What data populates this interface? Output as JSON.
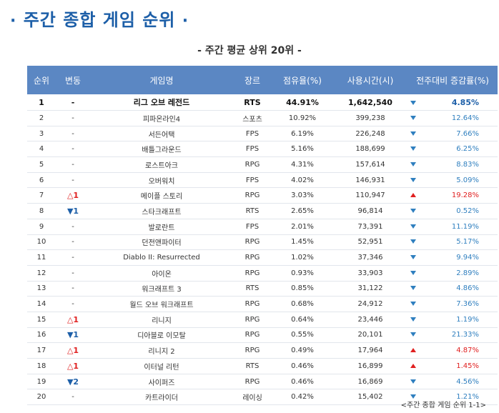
{
  "title": {
    "bullet_left": "·",
    "text": "주간 종합 게임 순위",
    "bullet_right": "·"
  },
  "subtitle": "- 주간 평균 상위 20위 -",
  "table": {
    "headers": [
      "순위",
      "변동",
      "게임명",
      "장르",
      "점유율(%)",
      "사용시간(시)",
      "전주대비 증감률(%)"
    ],
    "rows": [
      {
        "rank": "1",
        "move": "-",
        "move_dir": "none",
        "name": "리그 오브 레전드",
        "genre": "RTS",
        "share": "44.91%",
        "hours": "1,642,540",
        "trend": "down",
        "change": "4.85%"
      },
      {
        "rank": "2",
        "move": "-",
        "move_dir": "none",
        "name": "피파온라인4",
        "genre": "스포츠",
        "share": "10.92%",
        "hours": "399,238",
        "trend": "down",
        "change": "12.64%"
      },
      {
        "rank": "3",
        "move": "-",
        "move_dir": "none",
        "name": "서든어택",
        "genre": "FPS",
        "share": "6.19%",
        "hours": "226,248",
        "trend": "down",
        "change": "7.66%"
      },
      {
        "rank": "4",
        "move": "-",
        "move_dir": "none",
        "name": "배틀그라운드",
        "genre": "FPS",
        "share": "5.16%",
        "hours": "188,699",
        "trend": "down",
        "change": "6.25%"
      },
      {
        "rank": "5",
        "move": "-",
        "move_dir": "none",
        "name": "로스트아크",
        "genre": "RPG",
        "share": "4.31%",
        "hours": "157,614",
        "trend": "down",
        "change": "8.83%"
      },
      {
        "rank": "6",
        "move": "-",
        "move_dir": "none",
        "name": "오버워치",
        "genre": "FPS",
        "share": "4.02%",
        "hours": "146,931",
        "trend": "down",
        "change": "5.09%"
      },
      {
        "rank": "7",
        "move": "△1",
        "move_dir": "up",
        "name": "메이플 스토리",
        "genre": "RPG",
        "share": "3.03%",
        "hours": "110,947",
        "trend": "up",
        "change": "19.28%"
      },
      {
        "rank": "8",
        "move": "▼1",
        "move_dir": "down",
        "name": "스타크래프트",
        "genre": "RTS",
        "share": "2.65%",
        "hours": "96,814",
        "trend": "down",
        "change": "0.52%"
      },
      {
        "rank": "9",
        "move": "-",
        "move_dir": "none",
        "name": "발로란트",
        "genre": "FPS",
        "share": "2.01%",
        "hours": "73,391",
        "trend": "down",
        "change": "11.19%"
      },
      {
        "rank": "10",
        "move": "-",
        "move_dir": "none",
        "name": "던전앤파이터",
        "genre": "RPG",
        "share": "1.45%",
        "hours": "52,951",
        "trend": "down",
        "change": "5.17%"
      },
      {
        "rank": "11",
        "move": "-",
        "move_dir": "none",
        "name": "Diablo II: Resurrected",
        "genre": "RPG",
        "share": "1.02%",
        "hours": "37,346",
        "trend": "down",
        "change": "9.94%"
      },
      {
        "rank": "12",
        "move": "-",
        "move_dir": "none",
        "name": "아이온",
        "genre": "RPG",
        "share": "0.93%",
        "hours": "33,903",
        "trend": "down",
        "change": "2.89%"
      },
      {
        "rank": "13",
        "move": "-",
        "move_dir": "none",
        "name": "워크래프트 3",
        "genre": "RTS",
        "share": "0.85%",
        "hours": "31,122",
        "trend": "down",
        "change": "4.86%"
      },
      {
        "rank": "14",
        "move": "-",
        "move_dir": "none",
        "name": "월드 오브 워크래프트",
        "genre": "RPG",
        "share": "0.68%",
        "hours": "24,912",
        "trend": "down",
        "change": "7.36%"
      },
      {
        "rank": "15",
        "move": "△1",
        "move_dir": "up",
        "name": "리니지",
        "genre": "RPG",
        "share": "0.64%",
        "hours": "23,446",
        "trend": "down",
        "change": "1.19%"
      },
      {
        "rank": "16",
        "move": "▼1",
        "move_dir": "down",
        "name": "디아블로 이모탈",
        "genre": "RPG",
        "share": "0.55%",
        "hours": "20,101",
        "trend": "down",
        "change": "21.33%"
      },
      {
        "rank": "17",
        "move": "△1",
        "move_dir": "up",
        "name": "리니지 2",
        "genre": "RPG",
        "share": "0.49%",
        "hours": "17,964",
        "trend": "up",
        "change": "4.87%"
      },
      {
        "rank": "18",
        "move": "△1",
        "move_dir": "up",
        "name": "이터널 리턴",
        "genre": "RTS",
        "share": "0.46%",
        "hours": "16,899",
        "trend": "up",
        "change": "1.45%"
      },
      {
        "rank": "19",
        "move": "▼2",
        "move_dir": "down",
        "name": "사이퍼즈",
        "genre": "RPG",
        "share": "0.46%",
        "hours": "16,869",
        "trend": "down",
        "change": "4.56%"
      },
      {
        "rank": "20",
        "move": "-",
        "move_dir": "none",
        "name": "카트라이더",
        "genre": "레이싱",
        "share": "0.42%",
        "hours": "15,402",
        "trend": "down",
        "change": "1.21%"
      }
    ]
  },
  "footnote": "<주간 종합 게임 순위 1-1>",
  "colors": {
    "title": "#1d5fa8",
    "header_bg": "#5b87c3",
    "up": "#e02020",
    "down": "#2f7fbf"
  }
}
